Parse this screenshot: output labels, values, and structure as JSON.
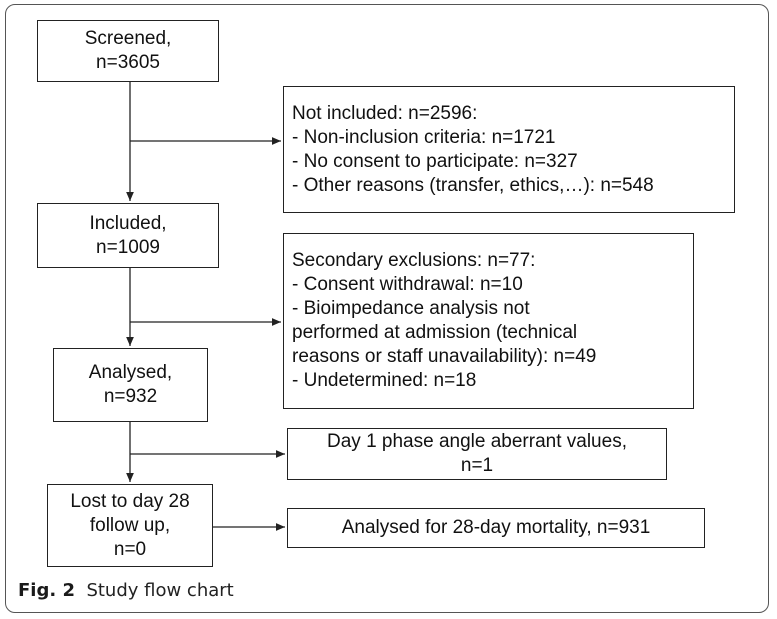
{
  "nodes": [
    {
      "lines": [
        "Screened,",
        "n=3605"
      ]
    },
    {
      "lines": [
        "Not included: n=2596:",
        "- Non-inclusion criteria: n=1721",
        "- No consent to participate: n=327",
        "- Other reasons (transfer, ethics,…): n=548"
      ]
    },
    {
      "lines": [
        "Included,",
        "n=1009"
      ]
    },
    {
      "lines": [
        "Secondary exclusions: n=77:",
        "- Consent withdrawal: n=10",
        "- Bioimpedance analysis not",
        "performed at admission (technical",
        "reasons or staff unavailability): n=49",
        "- Undetermined: n=18"
      ]
    },
    {
      "lines": [
        "Analysed,",
        "n=932"
      ]
    },
    {
      "lines": [
        "Day 1 phase angle aberrant values,",
        "n=1"
      ]
    },
    {
      "lines": [
        "Lost to day 28",
        "follow up,",
        "n=0"
      ]
    },
    {
      "lines": [
        "Analysed for 28-day mortality, n=931"
      ]
    }
  ],
  "caption": {
    "label": "Fig. 2",
    "text": "Study flow chart"
  }
}
